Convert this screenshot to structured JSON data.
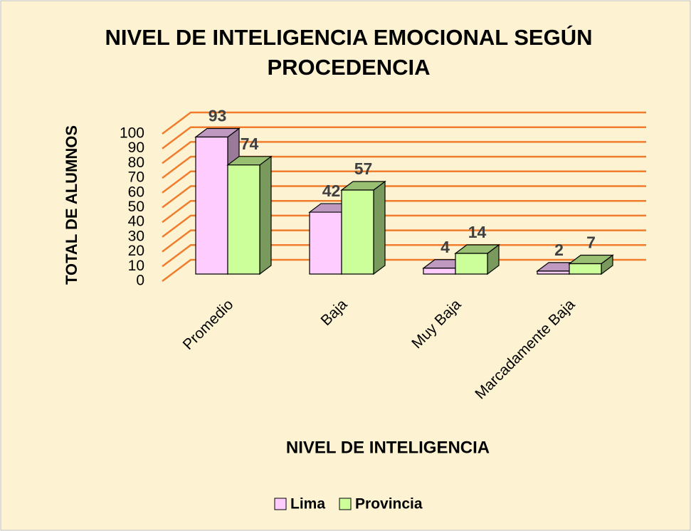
{
  "chart_data": {
    "type": "bar3d",
    "title": "NIVEL DE INTELIGENCIA EMOCIONAL SEGÚN",
    "title_line2": "PROCEDENCIA",
    "x_label": "NIVEL DE INTELIGENCIA",
    "y_label": "TOTAL DE ALUMNOS",
    "categories": [
      "Promedio",
      "Baja",
      "Muy Baja",
      "Marcadamente Baja"
    ],
    "series": [
      {
        "name": "Lima",
        "color": "#ffccff",
        "values": [
          93,
          42,
          4,
          2
        ]
      },
      {
        "name": "Provincia",
        "color": "#ccff99",
        "values": [
          74,
          57,
          14,
          7
        ]
      }
    ],
    "ylim": [
      0,
      100
    ],
    "yticks": [
      0,
      10,
      20,
      30,
      40,
      50,
      60,
      70,
      80,
      90,
      100
    ],
    "grid": true,
    "grid_color": "#f07d2e",
    "legend": "bottom"
  }
}
